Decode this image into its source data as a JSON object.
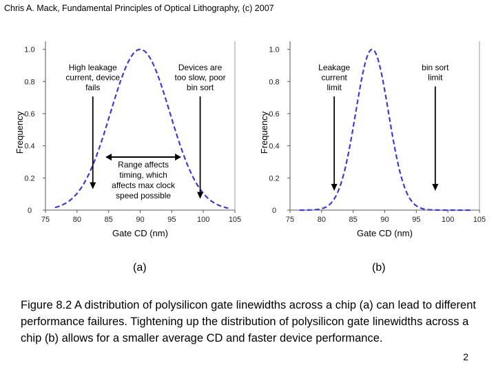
{
  "header": "Chris A. Mack, Fundamental Principles of Optical Lithography, (c) 2007",
  "caption": "Figure 8.2  A distribution of polysilicon gate linewidths across a chip (a) can lead to different performance failures.  Tightening up the distribution of polysilicon gate linewidths across a chip (b) allows for a smaller average CD and faster device performance.",
  "page_number": "2",
  "colors": {
    "curve": "#3a3ad8",
    "axis": "#555555",
    "text": "#000000"
  },
  "chart_data": [
    {
      "type": "line",
      "panel_label": "(a)",
      "xlabel": "Gate CD (nm)",
      "ylabel": "Frequency",
      "xlim": [
        75,
        105
      ],
      "ylim": [
        0,
        1.05
      ],
      "x_ticks": [
        "75",
        "80",
        "85",
        "90",
        "95",
        "100",
        "105"
      ],
      "y_ticks": [
        "0",
        "0.2",
        "0.4",
        "0.6",
        "0.8",
        "1.0"
      ],
      "series": [
        {
          "name": "Gate CD distribution",
          "style": "dashed",
          "mean": 90,
          "sigma": 4.7
        }
      ],
      "annotations": [
        {
          "name": "high-leakage",
          "lines": [
            "High leakage",
            "current, device",
            "fails"
          ],
          "arrow_x": 82.5,
          "arrow_to_y": 0.13
        },
        {
          "name": "too-slow",
          "lines": [
            "Devices are",
            "too slow, poor",
            "bin sort"
          ],
          "arrow_x": 99.5,
          "arrow_to_y": 0.07
        },
        {
          "name": "range-affects",
          "lines": [
            "Range affects",
            "timing, which",
            "affects max clock",
            "speed possible"
          ],
          "range": [
            84.5,
            96.5
          ],
          "range_y": 0.33
        }
      ]
    },
    {
      "type": "line",
      "panel_label": "(b)",
      "xlabel": "Gate CD (nm)",
      "ylabel": "Frequency",
      "xlim": [
        75,
        105
      ],
      "ylim": [
        0,
        1.05
      ],
      "x_ticks": [
        "75",
        "80",
        "85",
        "90",
        "95",
        "100",
        "105"
      ],
      "y_ticks": [
        "0",
        "0.2",
        "0.4",
        "0.6",
        "0.8",
        "1.0"
      ],
      "series": [
        {
          "name": "Gate CD distribution",
          "style": "dashed",
          "mean": 88,
          "sigma": 2.6
        }
      ],
      "annotations": [
        {
          "name": "leakage-limit",
          "lines": [
            "Leakage",
            "current",
            "limit"
          ],
          "arrow_x": 82,
          "arrow_to_y": 0.12
        },
        {
          "name": "bin-sort-limit",
          "lines": [
            "bin sort",
            "limit"
          ],
          "arrow_x": 98,
          "arrow_to_y": 0.12
        }
      ]
    }
  ]
}
